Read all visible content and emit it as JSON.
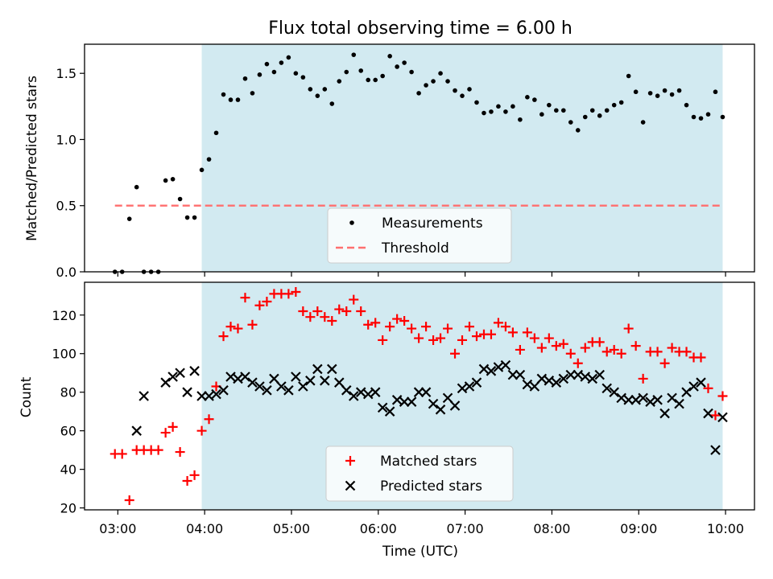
{
  "chart_data": [
    {
      "type": "scatter",
      "title": "Flux total observing time = 6.00 h",
      "ylabel": "Matched/Predicted stars",
      "xlabel": "",
      "xlim": [
        "02:37",
        "10:20"
      ],
      "ylim": [
        0,
        1.72
      ],
      "yticks": [
        0.0,
        0.5,
        1.0,
        1.5
      ],
      "ytick_labels": [
        "0.0",
        "0.5",
        "1.0",
        "1.5"
      ],
      "shaded_span": {
        "from": "03:58",
        "to": "09:58",
        "color": "#add8e6"
      },
      "legend_position": "lower center",
      "series": [
        {
          "name": "Measurements",
          "marker": "dot",
          "color": "#000000",
          "points": [
            [
              "02:58",
              0.0
            ],
            [
              "03:03",
              0.0
            ],
            [
              "03:08",
              0.4
            ],
            [
              "03:13",
              0.64
            ],
            [
              "03:18",
              0.0
            ],
            [
              "03:23",
              0.0
            ],
            [
              "03:28",
              0.0
            ],
            [
              "03:33",
              0.69
            ],
            [
              "03:38",
              0.7
            ],
            [
              "03:43",
              0.55
            ],
            [
              "03:48",
              0.41
            ],
            [
              "03:53",
              0.41
            ],
            [
              "03:58",
              0.77
            ],
            [
              "04:03",
              0.85
            ],
            [
              "04:08",
              1.05
            ],
            [
              "04:13",
              1.34
            ],
            [
              "04:18",
              1.3
            ],
            [
              "04:23",
              1.3
            ],
            [
              "04:28",
              1.46
            ],
            [
              "04:33",
              1.35
            ],
            [
              "04:38",
              1.49
            ],
            [
              "04:43",
              1.57
            ],
            [
              "04:48",
              1.51
            ],
            [
              "04:53",
              1.58
            ],
            [
              "04:58",
              1.62
            ],
            [
              "05:03",
              1.5
            ],
            [
              "05:08",
              1.47
            ],
            [
              "05:13",
              1.38
            ],
            [
              "05:18",
              1.33
            ],
            [
              "05:23",
              1.38
            ],
            [
              "05:28",
              1.27
            ],
            [
              "05:33",
              1.44
            ],
            [
              "05:38",
              1.51
            ],
            [
              "05:43",
              1.64
            ],
            [
              "05:48",
              1.52
            ],
            [
              "05:53",
              1.45
            ],
            [
              "05:58",
              1.45
            ],
            [
              "06:03",
              1.48
            ],
            [
              "06:08",
              1.63
            ],
            [
              "06:13",
              1.55
            ],
            [
              "06:18",
              1.58
            ],
            [
              "06:23",
              1.51
            ],
            [
              "06:28",
              1.35
            ],
            [
              "06:33",
              1.41
            ],
            [
              "06:38",
              1.44
            ],
            [
              "06:43",
              1.5
            ],
            [
              "06:48",
              1.44
            ],
            [
              "06:53",
              1.37
            ],
            [
              "06:58",
              1.33
            ],
            [
              "07:03",
              1.38
            ],
            [
              "07:08",
              1.28
            ],
            [
              "07:13",
              1.2
            ],
            [
              "07:18",
              1.21
            ],
            [
              "07:23",
              1.25
            ],
            [
              "07:28",
              1.21
            ],
            [
              "07:33",
              1.25
            ],
            [
              "07:38",
              1.15
            ],
            [
              "07:43",
              1.32
            ],
            [
              "07:48",
              1.3
            ],
            [
              "07:53",
              1.19
            ],
            [
              "07:58",
              1.26
            ],
            [
              "08:03",
              1.22
            ],
            [
              "08:08",
              1.22
            ],
            [
              "08:13",
              1.13
            ],
            [
              "08:18",
              1.07
            ],
            [
              "08:23",
              1.17
            ],
            [
              "08:28",
              1.22
            ],
            [
              "08:33",
              1.18
            ],
            [
              "08:38",
              1.22
            ],
            [
              "08:43",
              1.26
            ],
            [
              "08:48",
              1.28
            ],
            [
              "08:53",
              1.48
            ],
            [
              "08:58",
              1.36
            ],
            [
              "09:03",
              1.13
            ],
            [
              "09:08",
              1.35
            ],
            [
              "09:13",
              1.33
            ],
            [
              "09:18",
              1.37
            ],
            [
              "09:23",
              1.34
            ],
            [
              "09:28",
              1.37
            ],
            [
              "09:33",
              1.26
            ],
            [
              "09:38",
              1.17
            ],
            [
              "09:43",
              1.16
            ],
            [
              "09:48",
              1.19
            ],
            [
              "09:53",
              1.36
            ],
            [
              "09:58",
              1.17
            ]
          ]
        },
        {
          "name": "Threshold",
          "type": "line",
          "style": "dashed",
          "color": "#ff6f6f",
          "points": [
            [
              "02:58",
              0.5
            ],
            [
              "09:58",
              0.5
            ]
          ]
        }
      ]
    },
    {
      "type": "scatter",
      "title": "",
      "ylabel": "Count",
      "xlabel": "Time (UTC)",
      "xlim": [
        "02:37",
        "10:20"
      ],
      "ylim": [
        19,
        137
      ],
      "yticks": [
        20,
        40,
        60,
        80,
        100,
        120
      ],
      "ytick_labels": [
        "20",
        "40",
        "60",
        "80",
        "100",
        "120"
      ],
      "xticks": [
        "03:00",
        "04:00",
        "05:00",
        "06:00",
        "07:00",
        "08:00",
        "09:00",
        "10:00"
      ],
      "shaded_span": {
        "from": "03:58",
        "to": "09:58",
        "color": "#add8e6"
      },
      "legend_position": "lower center",
      "series": [
        {
          "name": "Matched stars",
          "marker": "plus",
          "color": "#ff0000",
          "points": [
            [
              "02:58",
              48
            ],
            [
              "03:03",
              48
            ],
            [
              "03:08",
              24
            ],
            [
              "03:13",
              50
            ],
            [
              "03:18",
              50
            ],
            [
              "03:23",
              50
            ],
            [
              "03:28",
              50
            ],
            [
              "03:33",
              59
            ],
            [
              "03:38",
              62
            ],
            [
              "03:43",
              49
            ],
            [
              "03:48",
              34
            ],
            [
              "03:53",
              37
            ],
            [
              "03:58",
              60
            ],
            [
              "04:03",
              66
            ],
            [
              "04:08",
              83
            ],
            [
              "04:13",
              109
            ],
            [
              "04:18",
              114
            ],
            [
              "04:23",
              113
            ],
            [
              "04:28",
              129
            ],
            [
              "04:33",
              115
            ],
            [
              "04:38",
              125
            ],
            [
              "04:43",
              127
            ],
            [
              "04:48",
              131
            ],
            [
              "04:53",
              131
            ],
            [
              "04:58",
              131
            ],
            [
              "05:03",
              132
            ],
            [
              "05:08",
              122
            ],
            [
              "05:13",
              119
            ],
            [
              "05:18",
              122
            ],
            [
              "05:23",
              119
            ],
            [
              "05:28",
              117
            ],
            [
              "05:33",
              123
            ],
            [
              "05:38",
              122
            ],
            [
              "05:43",
              128
            ],
            [
              "05:48",
              122
            ],
            [
              "05:53",
              115
            ],
            [
              "05:58",
              116
            ],
            [
              "06:03",
              107
            ],
            [
              "06:08",
              114
            ],
            [
              "06:13",
              118
            ],
            [
              "06:18",
              117
            ],
            [
              "06:23",
              113
            ],
            [
              "06:28",
              108
            ],
            [
              "06:33",
              114
            ],
            [
              "06:38",
              107
            ],
            [
              "06:43",
              108
            ],
            [
              "06:48",
              113
            ],
            [
              "06:53",
              100
            ],
            [
              "06:58",
              107
            ],
            [
              "07:03",
              114
            ],
            [
              "07:08",
              109
            ],
            [
              "07:13",
              110
            ],
            [
              "07:18",
              110
            ],
            [
              "07:23",
              116
            ],
            [
              "07:28",
              114
            ],
            [
              "07:33",
              111
            ],
            [
              "07:38",
              102
            ],
            [
              "07:43",
              111
            ],
            [
              "07:48",
              108
            ],
            [
              "07:53",
              103
            ],
            [
              "07:58",
              108
            ],
            [
              "08:03",
              104
            ],
            [
              "08:08",
              105
            ],
            [
              "08:13",
              100
            ],
            [
              "08:18",
              95
            ],
            [
              "08:23",
              103
            ],
            [
              "08:28",
              106
            ],
            [
              "08:33",
              106
            ],
            [
              "08:38",
              101
            ],
            [
              "08:43",
              102
            ],
            [
              "08:48",
              100
            ],
            [
              "08:53",
              113
            ],
            [
              "08:58",
              104
            ],
            [
              "09:03",
              87
            ],
            [
              "09:08",
              101
            ],
            [
              "09:13",
              101
            ],
            [
              "09:18",
              95
            ],
            [
              "09:23",
              103
            ],
            [
              "09:28",
              101
            ],
            [
              "09:33",
              101
            ],
            [
              "09:38",
              98
            ],
            [
              "09:43",
              98
            ],
            [
              "09:48",
              82
            ],
            [
              "09:53",
              68
            ],
            [
              "09:58",
              78
            ]
          ]
        },
        {
          "name": "Predicted stars",
          "marker": "x",
          "color": "#000000",
          "points": [
            [
              "03:13",
              60
            ],
            [
              "03:18",
              78
            ],
            [
              "03:33",
              85
            ],
            [
              "03:38",
              88
            ],
            [
              "03:43",
              90
            ],
            [
              "03:48",
              80
            ],
            [
              "03:53",
              91
            ],
            [
              "03:58",
              78
            ],
            [
              "04:03",
              78
            ],
            [
              "04:08",
              79
            ],
            [
              "04:13",
              81
            ],
            [
              "04:18",
              88
            ],
            [
              "04:23",
              87
            ],
            [
              "04:28",
              88
            ],
            [
              "04:33",
              85
            ],
            [
              "04:38",
              83
            ],
            [
              "04:43",
              81
            ],
            [
              "04:48",
              87
            ],
            [
              "04:53",
              83
            ],
            [
              "04:58",
              81
            ],
            [
              "05:03",
              88
            ],
            [
              "05:08",
              83
            ],
            [
              "05:13",
              86
            ],
            [
              "05:18",
              92
            ],
            [
              "05:23",
              86
            ],
            [
              "05:28",
              92
            ],
            [
              "05:33",
              85
            ],
            [
              "05:38",
              81
            ],
            [
              "05:43",
              78
            ],
            [
              "05:48",
              80
            ],
            [
              "05:53",
              79
            ],
            [
              "05:58",
              80
            ],
            [
              "06:03",
              72
            ],
            [
              "06:08",
              70
            ],
            [
              "06:13",
              76
            ],
            [
              "06:18",
              75
            ],
            [
              "06:23",
              75
            ],
            [
              "06:28",
              80
            ],
            [
              "06:33",
              80
            ],
            [
              "06:38",
              74
            ],
            [
              "06:43",
              71
            ],
            [
              "06:48",
              77
            ],
            [
              "06:53",
              73
            ],
            [
              "06:58",
              82
            ],
            [
              "07:03",
              83
            ],
            [
              "07:08",
              85
            ],
            [
              "07:13",
              92
            ],
            [
              "07:18",
              91
            ],
            [
              "07:23",
              93
            ],
            [
              "07:28",
              94
            ],
            [
              "07:33",
              89
            ],
            [
              "07:38",
              89
            ],
            [
              "07:43",
              84
            ],
            [
              "07:48",
              83
            ],
            [
              "07:53",
              87
            ],
            [
              "07:58",
              86
            ],
            [
              "08:03",
              85
            ],
            [
              "08:08",
              87
            ],
            [
              "08:13",
              89
            ],
            [
              "08:18",
              89
            ],
            [
              "08:23",
              88
            ],
            [
              "08:28",
              87
            ],
            [
              "08:33",
              89
            ],
            [
              "08:38",
              82
            ],
            [
              "08:43",
              80
            ],
            [
              "08:48",
              77
            ],
            [
              "08:53",
              76
            ],
            [
              "08:58",
              76
            ],
            [
              "09:03",
              77
            ],
            [
              "09:08",
              75
            ],
            [
              "09:13",
              76
            ],
            [
              "09:18",
              69
            ],
            [
              "09:23",
              77
            ],
            [
              "09:28",
              74
            ],
            [
              "09:33",
              80
            ],
            [
              "09:38",
              83
            ],
            [
              "09:43",
              85
            ],
            [
              "09:48",
              69
            ],
            [
              "09:53",
              50
            ],
            [
              "09:58",
              67
            ]
          ]
        }
      ]
    }
  ]
}
